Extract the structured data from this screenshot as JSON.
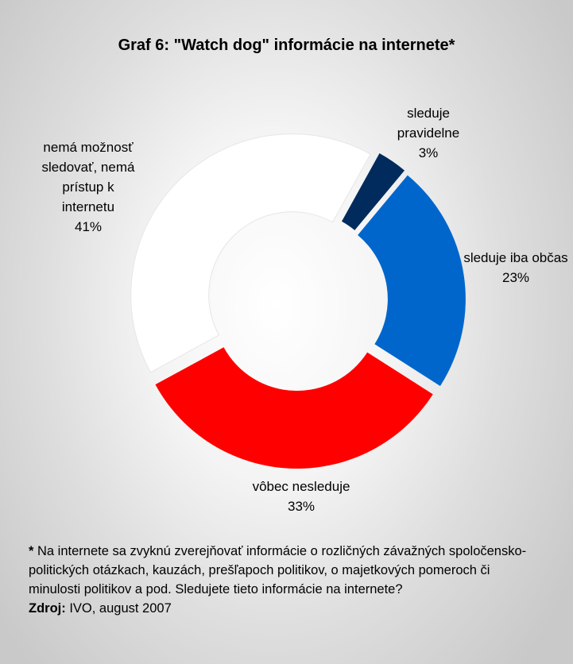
{
  "title": "Graf 6: \"Watch dog\" informácie na internete*",
  "chart_data": {
    "type": "pie",
    "donut": true,
    "title": "Graf 6: \"Watch dog\" informácie na internete*",
    "slices": [
      {
        "label": [
          "sleduje",
          "pravidelne"
        ],
        "pct_label": "3%",
        "value": 3,
        "color": "#002b5c",
        "exploded": true
      },
      {
        "label": [
          "sleduje iba občas"
        ],
        "pct_label": "23%",
        "value": 23,
        "color": "#0066cc",
        "exploded": true
      },
      {
        "label": [
          "vôbec nesleduje"
        ],
        "pct_label": "33%",
        "value": 33,
        "color": "#ff0000",
        "exploded": true
      },
      {
        "label": [
          "nemá možnosť",
          "sledovať, nemá",
          "prístup k",
          "internetu"
        ],
        "pct_label": "41%",
        "value": 41,
        "color": "#ffffff",
        "exploded": true
      }
    ]
  },
  "footnote": {
    "marker": "*",
    "lines": [
      " Na internete sa zvyknú zverejňovať informácie o rozličných závažných spoločensko-",
      "politických otázkach, kauzách, prešľapoch politikov, o majetkových pomeroch či",
      "minulosti politikov a pod. Sledujete tieto informácie na internete?"
    ],
    "source_label": "Zdroj:",
    "source_text": " IVO, august 2007"
  }
}
